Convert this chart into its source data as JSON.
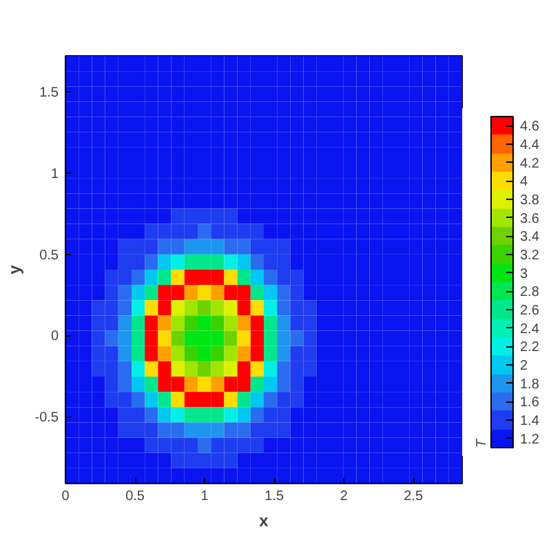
{
  "chart_data": {
    "type": "heatmap",
    "xlabel": "x",
    "ylabel": "y",
    "clabel": "T",
    "xlim": [
      0,
      2.85
    ],
    "ylim": [
      -0.91,
      1.72
    ],
    "xticks": [
      0,
      0.5,
      1,
      1.5,
      2,
      2.5
    ],
    "yticks": [
      -0.5,
      0,
      0.5,
      1,
      1.5
    ],
    "clim": [
      1.1,
      4.7
    ],
    "cticks": [
      1.2,
      1.4,
      1.6,
      1.8,
      2,
      2.2,
      2.4,
      2.6,
      2.8,
      3,
      3.2,
      3.4,
      3.6,
      3.8,
      4,
      4.2,
      4.4,
      4.6
    ],
    "colors": [
      "#0a14f0",
      "#1e3cf0",
      "#2a6cf0",
      "#1e96f0",
      "#00c8f0",
      "#00f0e6",
      "#00f0b4",
      "#00e68c",
      "#00e650",
      "#00e614",
      "#3cd200",
      "#6ed200",
      "#a0e600",
      "#dcf000",
      "#ffdc00",
      "#ffa000",
      "#ff6400",
      "#ff0000"
    ],
    "grid": false,
    "cells": [
      [
        1.2,
        1.2,
        1.2,
        1.2,
        1.2,
        1.2,
        1.2,
        1.2,
        1.2,
        1.2,
        1.2,
        1.2,
        1.2,
        1.2,
        1.2,
        1.2,
        1.2,
        1.2,
        1.2,
        1.2,
        1.2,
        1.2,
        1.2,
        1.2,
        1.2,
        1.2,
        1.2,
        1.2,
        1.2,
        1.2
      ],
      [
        1.2,
        1.2,
        1.2,
        1.2,
        1.2,
        1.2,
        1.2,
        1.2,
        1.2,
        1.2,
        1.2,
        1.2,
        1.2,
        1.2,
        1.2,
        1.2,
        1.2,
        1.2,
        1.2,
        1.2,
        1.2,
        1.2,
        1.2,
        1.2,
        1.2,
        1.2,
        1.2,
        1.2,
        1.2,
        1.2
      ],
      [
        1.2,
        1.2,
        1.2,
        1.2,
        1.2,
        1.2,
        1.2,
        1.2,
        1.2,
        1.2,
        1.2,
        1.2,
        1.2,
        1.2,
        1.2,
        1.2,
        1.2,
        1.2,
        1.2,
        1.2,
        1.2,
        1.2,
        1.2,
        1.2,
        1.2,
        1.2,
        1.2,
        1.2,
        1.2,
        1.2
      ],
      [
        1.2,
        1.2,
        1.2,
        1.2,
        1.2,
        1.2,
        1.2,
        1.2,
        1.2,
        1.2,
        1.2,
        1.2,
        1.2,
        1.2,
        1.2,
        1.2,
        1.2,
        1.2,
        1.2,
        1.2,
        1.2,
        1.2,
        1.2,
        1.2,
        1.2,
        1.2,
        1.2,
        1.2,
        1.2,
        1.2
      ],
      [
        1.2,
        1.2,
        1.2,
        1.2,
        1.2,
        1.2,
        1.2,
        1.2,
        1.2,
        1.2,
        1.2,
        1.2,
        1.2,
        1.2,
        1.2,
        1.2,
        1.2,
        1.2,
        1.2,
        1.2,
        1.2,
        1.2,
        1.2,
        1.2,
        1.2,
        1.2,
        1.2,
        1.2,
        1.2,
        1.2
      ],
      [
        1.2,
        1.2,
        1.2,
        1.2,
        1.2,
        1.2,
        1.2,
        1.2,
        1.2,
        1.2,
        1.2,
        1.2,
        1.2,
        1.2,
        1.2,
        1.2,
        1.2,
        1.2,
        1.2,
        1.2,
        1.2,
        1.2,
        1.2,
        1.2,
        1.2,
        1.2,
        1.2,
        1.2,
        1.2,
        1.2
      ],
      [
        1.2,
        1.2,
        1.2,
        1.2,
        1.2,
        1.2,
        1.2,
        1.2,
        1.2,
        1.2,
        1.2,
        1.2,
        1.2,
        1.2,
        1.2,
        1.2,
        1.2,
        1.2,
        1.2,
        1.2,
        1.2,
        1.2,
        1.2,
        1.2,
        1.2,
        1.2,
        1.2,
        1.2,
        1.2,
        1.2
      ],
      [
        1.2,
        1.2,
        1.2,
        1.2,
        1.2,
        1.2,
        1.2,
        1.2,
        1.2,
        1.2,
        1.2,
        1.2,
        1.2,
        1.2,
        1.2,
        1.2,
        1.2,
        1.2,
        1.2,
        1.2,
        1.2,
        1.2,
        1.2,
        1.2,
        1.2,
        1.2,
        1.2,
        1.2,
        1.2,
        1.2
      ],
      [
        1.2,
        1.2,
        1.2,
        1.2,
        1.2,
        1.2,
        1.2,
        1.2,
        1.2,
        1.2,
        1.2,
        1.2,
        1.2,
        1.2,
        1.2,
        1.2,
        1.2,
        1.2,
        1.2,
        1.2,
        1.2,
        1.2,
        1.2,
        1.2,
        1.2,
        1.2,
        1.2,
        1.2,
        1.2,
        1.2
      ],
      [
        1.2,
        1.2,
        1.2,
        1.2,
        1.2,
        1.2,
        1.2,
        1.2,
        1.2,
        1.2,
        1.2,
        1.2,
        1.2,
        1.2,
        1.2,
        1.2,
        1.2,
        1.2,
        1.2,
        1.2,
        1.2,
        1.2,
        1.2,
        1.2,
        1.2,
        1.2,
        1.2,
        1.2,
        1.2,
        1.2
      ],
      [
        1.2,
        1.2,
        1.2,
        1.2,
        1.2,
        1.2,
        1.2,
        1.2,
        1.4,
        1.4,
        1.4,
        1.4,
        1.4,
        1.2,
        1.2,
        1.2,
        1.2,
        1.2,
        1.2,
        1.2,
        1.2,
        1.2,
        1.2,
        1.2,
        1.2,
        1.2,
        1.2,
        1.2,
        1.2,
        1.2
      ],
      [
        1.2,
        1.2,
        1.2,
        1.2,
        1.2,
        1.2,
        1.4,
        1.4,
        1.4,
        1.4,
        1.6,
        1.4,
        1.4,
        1.4,
        1.4,
        1.2,
        1.2,
        1.2,
        1.2,
        1.2,
        1.2,
        1.2,
        1.2,
        1.2,
        1.2,
        1.2,
        1.2,
        1.2,
        1.2,
        1.2
      ],
      [
        1.2,
        1.2,
        1.2,
        1.2,
        1.4,
        1.4,
        1.4,
        1.6,
        1.6,
        1.8,
        1.8,
        1.8,
        1.6,
        1.6,
        1.4,
        1.4,
        1.4,
        1.2,
        1.2,
        1.2,
        1.2,
        1.2,
        1.2,
        1.2,
        1.2,
        1.2,
        1.2,
        1.2,
        1.2,
        1.2
      ],
      [
        1.2,
        1.2,
        1.2,
        1.2,
        1.4,
        1.4,
        1.6,
        2.0,
        2.2,
        2.6,
        2.6,
        2.6,
        2.2,
        2.0,
        1.6,
        1.4,
        1.4,
        1.2,
        1.2,
        1.2,
        1.2,
        1.2,
        1.2,
        1.2,
        1.2,
        1.2,
        1.2,
        1.2,
        1.2,
        1.2
      ],
      [
        1.2,
        1.2,
        1.2,
        1.4,
        1.4,
        1.6,
        2.0,
        2.6,
        4.0,
        4.6,
        4.6,
        4.6,
        4.0,
        2.6,
        2.0,
        1.6,
        1.4,
        1.4,
        1.2,
        1.2,
        1.2,
        1.2,
        1.2,
        1.2,
        1.2,
        1.2,
        1.2,
        1.2,
        1.2,
        1.2
      ],
      [
        1.2,
        1.2,
        1.2,
        1.4,
        1.6,
        2.0,
        2.6,
        4.6,
        4.6,
        4.2,
        4.0,
        4.2,
        4.6,
        4.6,
        2.6,
        2.0,
        1.6,
        1.4,
        1.2,
        1.2,
        1.2,
        1.2,
        1.2,
        1.2,
        1.2,
        1.2,
        1.2,
        1.2,
        1.2,
        1.2
      ],
      [
        1.2,
        1.2,
        1.4,
        1.4,
        1.6,
        2.2,
        4.0,
        4.6,
        3.8,
        3.6,
        3.4,
        3.6,
        3.8,
        4.6,
        4.0,
        2.2,
        1.6,
        1.4,
        1.4,
        1.2,
        1.2,
        1.2,
        1.2,
        1.2,
        1.2,
        1.2,
        1.2,
        1.2,
        1.2,
        1.2
      ],
      [
        1.2,
        1.2,
        1.4,
        1.4,
        1.8,
        2.6,
        4.6,
        4.2,
        3.6,
        3.2,
        3.0,
        3.2,
        3.6,
        4.2,
        4.6,
        2.6,
        1.8,
        1.4,
        1.4,
        1.2,
        1.2,
        1.2,
        1.2,
        1.2,
        1.2,
        1.2,
        1.2,
        1.2,
        1.2,
        1.2
      ],
      [
        1.2,
        1.2,
        1.4,
        1.6,
        1.8,
        2.6,
        4.6,
        4.0,
        3.4,
        3.0,
        3.0,
        3.0,
        3.4,
        4.0,
        4.6,
        2.6,
        1.8,
        1.6,
        1.4,
        1.2,
        1.2,
        1.2,
        1.2,
        1.2,
        1.2,
        1.2,
        1.2,
        1.2,
        1.2,
        1.2
      ],
      [
        1.2,
        1.2,
        1.4,
        1.4,
        1.8,
        2.6,
        4.6,
        4.2,
        3.6,
        3.2,
        3.0,
        3.2,
        3.6,
        4.2,
        4.6,
        2.6,
        1.8,
        1.4,
        1.4,
        1.2,
        1.2,
        1.2,
        1.2,
        1.2,
        1.2,
        1.2,
        1.2,
        1.2,
        1.2,
        1.2
      ],
      [
        1.2,
        1.2,
        1.4,
        1.4,
        1.6,
        2.2,
        4.0,
        4.6,
        3.8,
        3.6,
        3.4,
        3.6,
        3.8,
        4.6,
        4.0,
        2.2,
        1.6,
        1.4,
        1.4,
        1.2,
        1.2,
        1.2,
        1.2,
        1.2,
        1.2,
        1.2,
        1.2,
        1.2,
        1.2,
        1.2
      ],
      [
        1.2,
        1.2,
        1.2,
        1.4,
        1.6,
        2.0,
        2.6,
        4.6,
        4.6,
        4.2,
        4.0,
        4.2,
        4.6,
        4.6,
        2.6,
        2.0,
        1.6,
        1.4,
        1.2,
        1.2,
        1.2,
        1.2,
        1.2,
        1.2,
        1.2,
        1.2,
        1.2,
        1.2,
        1.2,
        1.2
      ],
      [
        1.2,
        1.2,
        1.2,
        1.4,
        1.4,
        1.6,
        2.0,
        2.6,
        4.0,
        4.6,
        4.6,
        4.6,
        4.0,
        2.6,
        2.0,
        1.6,
        1.4,
        1.4,
        1.2,
        1.2,
        1.2,
        1.2,
        1.2,
        1.2,
        1.2,
        1.2,
        1.2,
        1.2,
        1.2,
        1.2
      ],
      [
        1.2,
        1.2,
        1.2,
        1.2,
        1.4,
        1.4,
        1.6,
        2.0,
        2.2,
        2.6,
        2.6,
        2.6,
        2.2,
        2.0,
        1.6,
        1.4,
        1.4,
        1.2,
        1.2,
        1.2,
        1.2,
        1.2,
        1.2,
        1.2,
        1.2,
        1.2,
        1.2,
        1.2,
        1.2,
        1.2
      ],
      [
        1.2,
        1.2,
        1.2,
        1.2,
        1.4,
        1.4,
        1.4,
        1.6,
        1.6,
        1.8,
        1.8,
        1.8,
        1.6,
        1.6,
        1.4,
        1.4,
        1.4,
        1.2,
        1.2,
        1.2,
        1.2,
        1.2,
        1.2,
        1.2,
        1.2,
        1.2,
        1.2,
        1.2,
        1.2,
        1.2
      ],
      [
        1.2,
        1.2,
        1.2,
        1.2,
        1.2,
        1.2,
        1.4,
        1.4,
        1.4,
        1.4,
        1.6,
        1.4,
        1.4,
        1.4,
        1.4,
        1.2,
        1.2,
        1.2,
        1.2,
        1.2,
        1.2,
        1.2,
        1.2,
        1.2,
        1.2,
        1.2,
        1.2,
        1.2,
        1.2,
        1.2
      ],
      [
        1.2,
        1.2,
        1.2,
        1.2,
        1.2,
        1.2,
        1.2,
        1.2,
        1.4,
        1.4,
        1.4,
        1.4,
        1.4,
        1.2,
        1.2,
        1.2,
        1.2,
        1.2,
        1.2,
        1.2,
        1.2,
        1.2,
        1.2,
        1.2,
        1.2,
        1.2,
        1.2,
        1.2,
        1.2,
        1.2
      ],
      [
        1.2,
        1.2,
        1.2,
        1.2,
        1.2,
        1.2,
        1.2,
        1.2,
        1.2,
        1.2,
        1.2,
        1.2,
        1.2,
        1.2,
        1.2,
        1.2,
        1.2,
        1.2,
        1.2,
        1.2,
        1.2,
        1.2,
        1.2,
        1.2,
        1.2,
        1.2,
        1.2,
        1.2,
        1.2,
        1.2
      ]
    ]
  }
}
